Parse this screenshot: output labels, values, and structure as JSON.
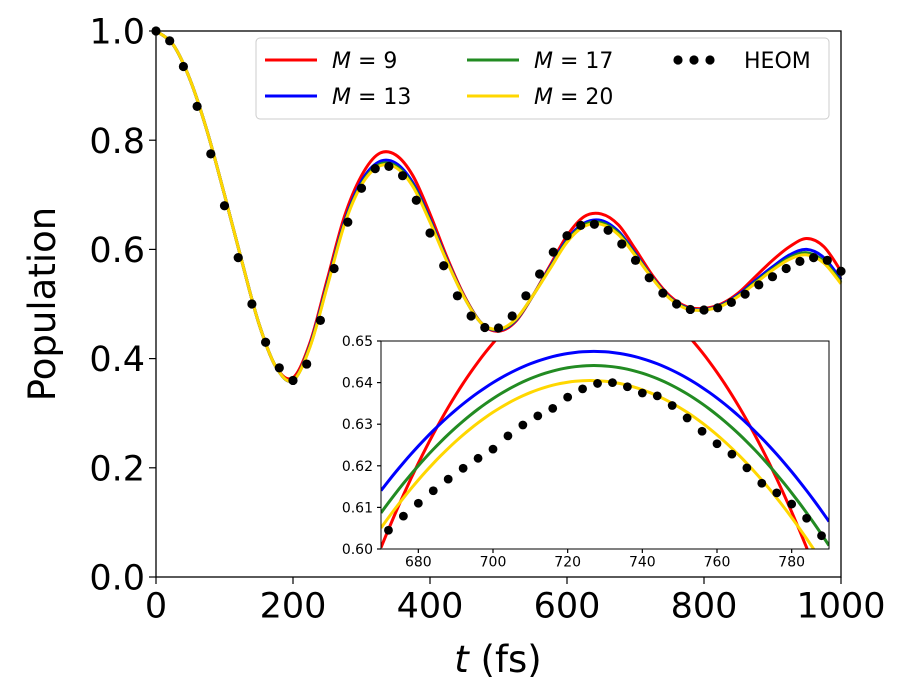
{
  "chart_data": [
    {
      "type": "line",
      "title": "",
      "xlabel_italic": "t",
      "xlabel_rest": " (fs)",
      "ylabel": "Population",
      "xlim": [
        0,
        1000
      ],
      "ylim": [
        0.0,
        1.0
      ],
      "x_ticks": [
        0,
        200,
        400,
        600,
        800,
        1000
      ],
      "x_tick_labels": [
        "0",
        "200",
        "400",
        "600",
        "800",
        "1000"
      ],
      "y_ticks": [
        0.0,
        0.2,
        0.4,
        0.6,
        0.8,
        1.0
      ],
      "y_tick_labels": [
        "0.0",
        "0.2",
        "0.4",
        "0.6",
        "0.8",
        "1.0"
      ],
      "legend_location": "top-right",
      "series": [
        {
          "name": "M = 9",
          "label_var": "M",
          "label_value": "9",
          "color": "#ff0000",
          "style": "line",
          "x": [
            0,
            25,
            50,
            75,
            100,
            125,
            150,
            175,
            200,
            225,
            250,
            275,
            300,
            325,
            350,
            375,
            400,
            425,
            450,
            475,
            500,
            525,
            550,
            575,
            600,
            625,
            650,
            675,
            700,
            725,
            750,
            775,
            800,
            825,
            850,
            875,
            900,
            925,
            950,
            975,
            1000
          ],
          "values": [
            1.0,
            0.975,
            0.91,
            0.815,
            0.7,
            0.58,
            0.465,
            0.385,
            0.365,
            0.43,
            0.545,
            0.66,
            0.735,
            0.775,
            0.773,
            0.735,
            0.665,
            0.585,
            0.515,
            0.465,
            0.45,
            0.468,
            0.515,
            0.57,
            0.625,
            0.66,
            0.665,
            0.645,
            0.6,
            0.552,
            0.515,
            0.495,
            0.492,
            0.5,
            0.52,
            0.55,
            0.58,
            0.605,
            0.62,
            0.605,
            0.56
          ]
        },
        {
          "name": "M = 13",
          "label_var": "M",
          "label_value": "13",
          "color": "#0000ff",
          "style": "line",
          "x": [
            0,
            25,
            50,
            75,
            100,
            125,
            150,
            175,
            200,
            225,
            250,
            275,
            300,
            325,
            350,
            375,
            400,
            425,
            450,
            475,
            500,
            525,
            550,
            575,
            600,
            625,
            650,
            675,
            700,
            725,
            750,
            775,
            800,
            825,
            850,
            875,
            900,
            925,
            950,
            975,
            1000
          ],
          "values": [
            1.0,
            0.975,
            0.91,
            0.815,
            0.7,
            0.58,
            0.465,
            0.385,
            0.36,
            0.425,
            0.537,
            0.65,
            0.725,
            0.76,
            0.758,
            0.722,
            0.655,
            0.58,
            0.513,
            0.465,
            0.452,
            0.47,
            0.515,
            0.567,
            0.618,
            0.648,
            0.653,
            0.633,
            0.592,
            0.548,
            0.512,
            0.493,
            0.49,
            0.498,
            0.517,
            0.543,
            0.568,
            0.59,
            0.6,
            0.585,
            0.545
          ]
        },
        {
          "name": "M = 17",
          "label_var": "M",
          "label_value": "17",
          "color": "#228b22",
          "style": "line",
          "x": [
            0,
            25,
            50,
            75,
            100,
            125,
            150,
            175,
            200,
            225,
            250,
            275,
            300,
            325,
            350,
            375,
            400,
            425,
            450,
            475,
            500,
            525,
            550,
            575,
            600,
            625,
            650,
            675,
            700,
            725,
            750,
            775,
            800,
            825,
            850,
            875,
            900,
            925,
            950,
            975,
            1000
          ],
          "values": [
            1.0,
            0.975,
            0.91,
            0.815,
            0.7,
            0.58,
            0.465,
            0.385,
            0.36,
            0.423,
            0.534,
            0.647,
            0.72,
            0.755,
            0.753,
            0.718,
            0.652,
            0.578,
            0.512,
            0.465,
            0.453,
            0.471,
            0.515,
            0.565,
            0.615,
            0.645,
            0.649,
            0.63,
            0.59,
            0.547,
            0.511,
            0.492,
            0.489,
            0.497,
            0.515,
            0.54,
            0.564,
            0.585,
            0.594,
            0.578,
            0.54
          ]
        },
        {
          "name": "M = 20",
          "label_var": "M",
          "label_value": "20",
          "color": "#ffd700",
          "style": "line",
          "x": [
            0,
            25,
            50,
            75,
            100,
            125,
            150,
            175,
            200,
            225,
            250,
            275,
            300,
            325,
            350,
            375,
            400,
            425,
            450,
            475,
            500,
            525,
            550,
            575,
            600,
            625,
            650,
            675,
            700,
            725,
            750,
            775,
            800,
            825,
            850,
            875,
            900,
            925,
            950,
            975,
            1000
          ],
          "values": [
            1.0,
            0.975,
            0.91,
            0.815,
            0.7,
            0.58,
            0.465,
            0.385,
            0.36,
            0.422,
            0.532,
            0.645,
            0.718,
            0.752,
            0.75,
            0.715,
            0.65,
            0.577,
            0.512,
            0.465,
            0.454,
            0.472,
            0.515,
            0.564,
            0.613,
            0.642,
            0.646,
            0.627,
            0.588,
            0.546,
            0.51,
            0.491,
            0.489,
            0.496,
            0.514,
            0.538,
            0.562,
            0.582,
            0.59,
            0.575,
            0.537
          ]
        },
        {
          "name": "HEOM",
          "color": "#000000",
          "style": "dots",
          "x": [
            0,
            20,
            40,
            60,
            80,
            100,
            120,
            140,
            160,
            180,
            200,
            220,
            240,
            260,
            280,
            300,
            320,
            340,
            360,
            380,
            400,
            420,
            440,
            460,
            480,
            500,
            520,
            540,
            560,
            580,
            600,
            620,
            640,
            660,
            680,
            700,
            720,
            740,
            760,
            780,
            800,
            820,
            840,
            860,
            880,
            900,
            920,
            940,
            960,
            980,
            1000
          ],
          "values": [
            1.0,
            0.982,
            0.935,
            0.862,
            0.775,
            0.68,
            0.585,
            0.5,
            0.43,
            0.383,
            0.36,
            0.39,
            0.47,
            0.565,
            0.65,
            0.712,
            0.748,
            0.752,
            0.735,
            0.69,
            0.63,
            0.57,
            0.515,
            0.478,
            0.457,
            0.456,
            0.478,
            0.515,
            0.555,
            0.595,
            0.625,
            0.644,
            0.646,
            0.635,
            0.61,
            0.58,
            0.548,
            0.52,
            0.5,
            0.49,
            0.489,
            0.493,
            0.503,
            0.518,
            0.535,
            0.55,
            0.565,
            0.578,
            0.585,
            0.58,
            0.56
          ]
        }
      ]
    },
    {
      "type": "line",
      "title": "",
      "xlabel": "",
      "ylabel": "",
      "placement": "inset-bottom-right",
      "xlim": [
        670,
        790
      ],
      "ylim": [
        0.6,
        0.65
      ],
      "x_ticks": [
        680,
        700,
        720,
        740,
        760,
        780
      ],
      "x_tick_labels": [
        "680",
        "700",
        "720",
        "740",
        "760",
        "780"
      ],
      "y_ticks": [
        0.6,
        0.61,
        0.62,
        0.63,
        0.64,
        0.65
      ],
      "y_tick_labels": [
        "0.60",
        "0.61",
        "0.62",
        "0.63",
        "0.64",
        "0.65"
      ],
      "series": [
        {
          "name": "M = 9",
          "color": "#ff0000",
          "style": "line",
          "model": "parabola",
          "peak_x": 727,
          "peak_y": 0.6637,
          "a": 1.95e-05
        },
        {
          "name": "M = 13",
          "color": "#0000ff",
          "style": "line",
          "model": "parabola",
          "peak_x": 727,
          "peak_y": 0.6475,
          "a": 1.03e-05
        },
        {
          "name": "M = 17",
          "color": "#228b22",
          "style": "line",
          "model": "parabola",
          "peak_x": 727,
          "peak_y": 0.6441,
          "a": 1.09e-05
        },
        {
          "name": "M = 20",
          "color": "#ffd700",
          "style": "line",
          "model": "parabola",
          "peak_x": 726,
          "peak_y": 0.6405,
          "a": 1.13e-05
        },
        {
          "name": "HEOM",
          "color": "#000000",
          "style": "dots",
          "x": [
            672,
            676,
            680,
            684,
            688,
            692,
            696,
            700,
            704,
            708,
            712,
            716,
            720,
            724,
            728,
            732,
            736,
            740,
            744,
            748,
            752,
            756,
            760,
            764,
            768,
            772,
            776,
            780,
            784,
            788
          ],
          "values": [
            0.6045,
            0.6079,
            0.611,
            0.614,
            0.6168,
            0.6194,
            0.6218,
            0.624,
            0.6272,
            0.6298,
            0.632,
            0.6338,
            0.6365,
            0.6385,
            0.6398,
            0.64,
            0.639,
            0.6375,
            0.6368,
            0.6345,
            0.6315,
            0.6283,
            0.6253,
            0.6228,
            0.6195,
            0.6158,
            0.6135,
            0.6108,
            0.6074,
            0.6032
          ]
        }
      ]
    }
  ]
}
